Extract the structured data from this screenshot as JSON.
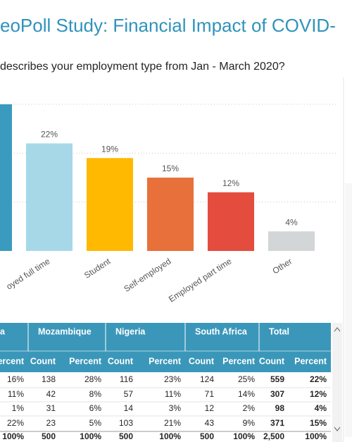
{
  "header": {
    "title": "eoPoll Study: Financial Impact of COVID-"
  },
  "chart_data": {
    "type": "bar",
    "title": "describes your employment type from Jan - March 2020?",
    "categories": [
      null,
      "oyed full time",
      "Student",
      "Self-employed",
      "Employed part time",
      "Other"
    ],
    "values": [
      30,
      22,
      19,
      15,
      12,
      4
    ],
    "value_labels": [
      null,
      "22%",
      "19%",
      "15%",
      "12%",
      "4%"
    ],
    "colors": [
      "#3a9bbf",
      "#a6d8e8",
      "#ffb900",
      "#e8703a",
      "#e44c3e",
      "#d3d6d6"
    ],
    "ylim": [
      0,
      31
    ],
    "yticks": [
      10,
      20,
      30
    ],
    "grid": true
  },
  "table": {
    "groups": [
      "a",
      "Mozambique",
      "Nigeria",
      "South Africa",
      "Total"
    ],
    "columns": [
      "ercent",
      "Count",
      "Percent",
      "Count",
      "Percent",
      "Count",
      "Percent",
      "Count",
      "Percent"
    ],
    "rows": [
      [
        "16%",
        "138",
        "28%",
        "116",
        "23%",
        "124",
        "25%",
        "559",
        "22%"
      ],
      [
        "11%",
        "42",
        "8%",
        "57",
        "11%",
        "71",
        "14%",
        "307",
        "12%"
      ],
      [
        "1%",
        "31",
        "6%",
        "14",
        "3%",
        "12",
        "2%",
        "98",
        "4%"
      ],
      [
        "22%",
        "23",
        "5%",
        "103",
        "21%",
        "43",
        "9%",
        "371",
        "15%"
      ],
      [
        "100%",
        "500",
        "100%",
        "500",
        "100%",
        "500",
        "100%",
        "2,500",
        "100%"
      ]
    ]
  }
}
